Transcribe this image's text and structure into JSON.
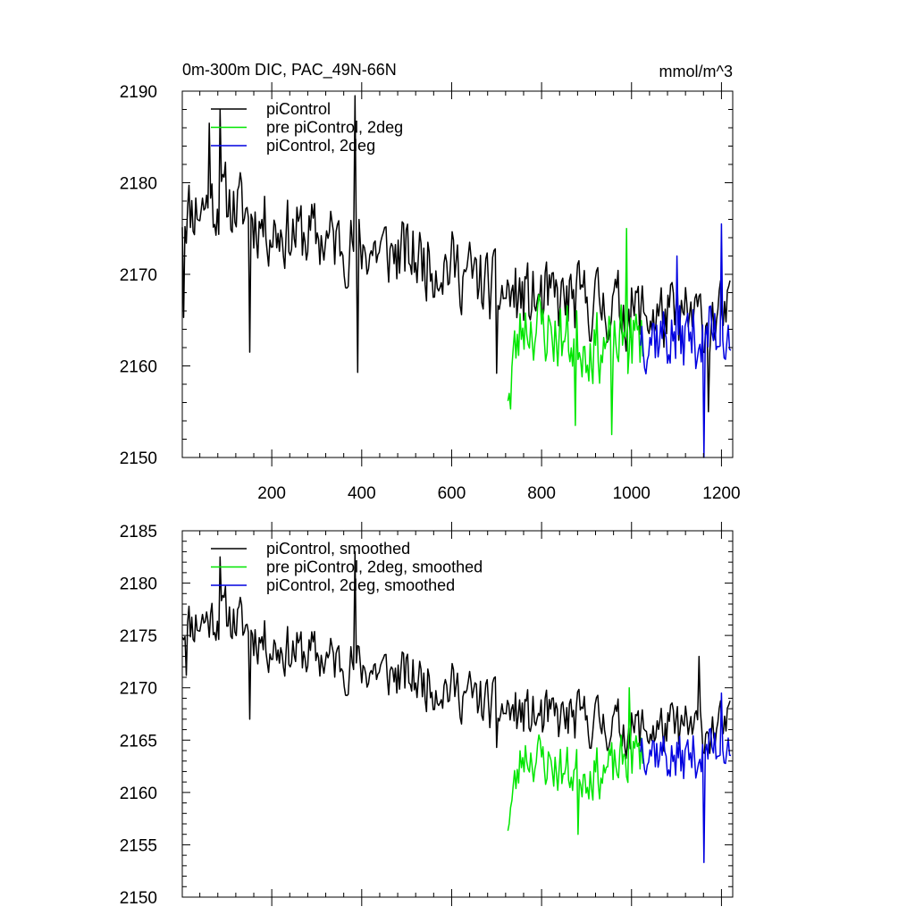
{
  "title_left": "0m-300m DIC, PAC_49N-66N",
  "title_right": "mmol/m^3",
  "colors": {
    "black": "#000000",
    "green": "#00e600",
    "blue": "#0000e0"
  },
  "chart_data": [
    {
      "type": "line",
      "xlim": [
        1,
        1225
      ],
      "ylim": [
        2150,
        2190
      ],
      "yticks": [
        2150,
        2160,
        2170,
        2180,
        2190
      ],
      "xticks": [
        200,
        400,
        600,
        800,
        1000,
        1200
      ],
      "series": [
        {
          "name": "piControl",
          "color": "#000000",
          "x_start": 1,
          "x_end": 1220,
          "sample_step": 3,
          "seed": 11,
          "anchors": [
            [
              1,
              2177
            ],
            [
              100,
              2178
            ],
            [
              200,
              2175
            ],
            [
              300,
              2174
            ],
            [
              400,
              2173
            ],
            [
              500,
              2172
            ],
            [
              600,
              2171
            ],
            [
              700,
              2168
            ],
            [
              800,
              2167
            ],
            [
              900,
              2167
            ],
            [
              1000,
              2166
            ],
            [
              1100,
              2165
            ],
            [
              1220,
              2165
            ]
          ],
          "noise_amp": 5.5,
          "extremes": [
            [
              5,
              2165.3
            ],
            [
              60,
              2186.5
            ],
            [
              85,
              2188
            ],
            [
              150,
              2161.5
            ],
            [
              385,
              2189.5
            ],
            [
              390,
              2159.3
            ],
            [
              700,
              2159.2
            ],
            [
              1170,
              2155
            ]
          ]
        },
        {
          "name": "pre piControl, 2deg",
          "color": "#00e600",
          "x_start": 725,
          "x_end": 1025,
          "sample_step": 3,
          "seed": 23,
          "anchors": [
            [
              725,
              2158
            ],
            [
              760,
              2165
            ],
            [
              850,
              2163
            ],
            [
              950,
              2162
            ],
            [
              1025,
              2163
            ]
          ],
          "noise_amp": 5.5,
          "extremes": [
            [
              730,
              2155.3
            ],
            [
              875,
              2153.5
            ],
            [
              955,
              2152.5
            ],
            [
              990,
              2175
            ]
          ]
        },
        {
          "name": "piControl, 2deg",
          "color": "#0000e0",
          "x_start": 1020,
          "x_end": 1222,
          "sample_step": 3,
          "seed": 37,
          "anchors": [
            [
              1020,
              2164
            ],
            [
              1100,
              2163
            ],
            [
              1222,
              2164
            ]
          ],
          "noise_amp": 5.5,
          "extremes": [
            [
              1100,
              2172
            ],
            [
              1160,
              2150
            ],
            [
              1200,
              2175.5
            ]
          ]
        }
      ]
    },
    {
      "type": "line",
      "xlim": [
        1,
        1225
      ],
      "ylim": [
        2150,
        2185
      ],
      "yticks": [
        2150,
        2155,
        2160,
        2165,
        2170,
        2175,
        2180,
        2185
      ],
      "xticks": [
        200,
        400,
        600,
        800,
        1000,
        1200
      ],
      "series": [
        {
          "name": "piControl, smoothed",
          "color": "#000000",
          "x_start": 1,
          "x_end": 1220,
          "sample_step": 3,
          "seed": 11,
          "anchors": [
            [
              1,
              2176
            ],
            [
              100,
              2177
            ],
            [
              200,
              2174
            ],
            [
              300,
              2173
            ],
            [
              400,
              2172
            ],
            [
              500,
              2171
            ],
            [
              600,
              2170
            ],
            [
              700,
              2168
            ],
            [
              800,
              2167
            ],
            [
              900,
              2167
            ],
            [
              1000,
              2166
            ],
            [
              1100,
              2166
            ],
            [
              1220,
              2166
            ]
          ],
          "noise_amp": 3.5,
          "extremes": [
            [
              10,
              2171.2
            ],
            [
              85,
              2182.5
            ],
            [
              150,
              2167
            ],
            [
              385,
              2183
            ],
            [
              700,
              2164.3
            ],
            [
              1150,
              2173
            ]
          ]
        },
        {
          "name": "pre piControl, 2deg, smoothed",
          "color": "#00e600",
          "x_start": 725,
          "x_end": 1025,
          "sample_step": 3,
          "seed": 23,
          "anchors": [
            [
              725,
              2157.5
            ],
            [
              760,
              2164
            ],
            [
              850,
              2162
            ],
            [
              950,
              2162
            ],
            [
              1025,
              2164
            ]
          ],
          "noise_amp": 3.5,
          "extremes": [
            [
              880,
              2156
            ],
            [
              995,
              2170
            ]
          ]
        },
        {
          "name": "piControl, 2deg, smoothed",
          "color": "#0000e0",
          "x_start": 1020,
          "x_end": 1222,
          "sample_step": 3,
          "seed": 37,
          "anchors": [
            [
              1020,
              2165
            ],
            [
              1100,
              2163
            ],
            [
              1222,
              2165
            ]
          ],
          "noise_amp": 3.5,
          "extremes": [
            [
              1160,
              2153.3
            ],
            [
              1200,
              2169.5
            ]
          ]
        }
      ]
    }
  ]
}
